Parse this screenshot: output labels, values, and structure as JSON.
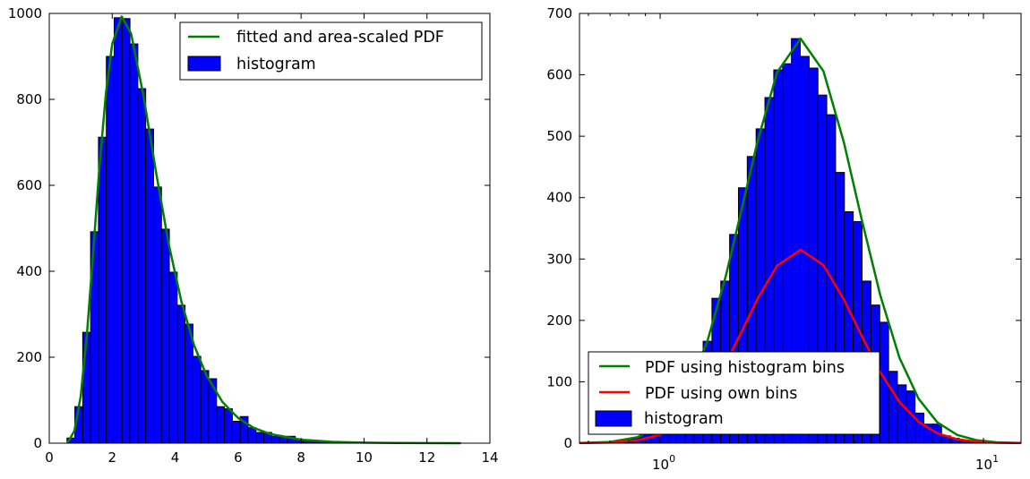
{
  "chart_data": [
    {
      "type": "bar",
      "title": "",
      "xlabel": "",
      "ylabel": "",
      "xscale": "linear",
      "xlim": [
        0,
        14
      ],
      "ylim": [
        0,
        1000
      ],
      "grid": false,
      "xticks": [
        0,
        2,
        4,
        6,
        8,
        10,
        12,
        14
      ],
      "xticklabels": [
        "0",
        "2",
        "4",
        "6",
        "8",
        "10",
        "12",
        "14"
      ],
      "yticks": [
        0,
        200,
        400,
        600,
        800,
        1000
      ],
      "yticklabels": [
        "0",
        "200",
        "400",
        "600",
        "800",
        "1000"
      ],
      "legend_position": "upper right",
      "colors": {
        "histogram": "#0000ff",
        "fit": "#008000",
        "edge": "#000000"
      },
      "histogram": {
        "name": "histogram",
        "bin_range": [
          0.563,
          13.07
        ],
        "bin_count": 50,
        "bin_spacing": "linear",
        "counts": [
          12,
          85,
          258,
          492,
          712,
          900,
          990,
          988,
          929,
          825,
          731,
          596,
          498,
          398,
          321,
          277,
          202,
          169,
          150,
          85,
          80,
          51,
          62,
          36,
          25,
          25,
          16,
          16,
          16,
          8,
          6,
          5,
          4,
          3,
          2,
          2,
          1,
          1,
          1,
          0,
          1,
          0,
          0,
          0,
          0,
          0,
          0,
          0,
          0,
          1
        ]
      },
      "series": [
        {
          "name": "fitted and area-scaled PDF",
          "color": "#008000",
          "x": [
            0.563,
            0.6,
            0.8,
            1.0,
            1.2,
            1.4,
            1.6,
            1.8,
            2.0,
            2.3,
            2.6,
            3.0,
            3.4,
            3.8,
            4.2,
            4.6,
            5.0,
            5.5,
            6.0,
            6.5,
            7.0,
            8.0,
            9.0,
            10.0,
            11.0,
            12.0,
            13.07
          ],
          "y": [
            1.9,
            3.3,
            29,
            109,
            257,
            449,
            648,
            815,
            929,
            993,
            953,
            806,
            627,
            462,
            329,
            228,
            157,
            96,
            58.5,
            35.6,
            21.7,
            8.2,
            3.1,
            1.2,
            0.5,
            0.2,
            0.1
          ]
        }
      ]
    },
    {
      "type": "bar",
      "title": "",
      "xlabel": "",
      "ylabel": "",
      "xscale": "log",
      "xlim": [
        0.563,
        13.07
      ],
      "ylim": [
        0,
        700
      ],
      "grid": false,
      "xticks": [
        1,
        10
      ],
      "xticklabels": [
        {
          "base": "10",
          "exp": "0"
        },
        {
          "base": "10",
          "exp": "1"
        }
      ],
      "yticks": [
        0,
        100,
        200,
        300,
        400,
        500,
        600,
        700
      ],
      "yticklabels": [
        "0",
        "100",
        "200",
        "300",
        "400",
        "500",
        "600",
        "700"
      ],
      "legend_position": "lower left",
      "colors": {
        "histogram": "#0000ff",
        "edge": "#000000"
      },
      "histogram": {
        "name": "histogram",
        "bin_range": [
          0.563,
          13.07
        ],
        "bin_count": 50,
        "bin_spacing": "log",
        "counts": [
          0,
          1,
          1,
          2,
          4,
          6,
          9,
          16,
          22,
          33,
          50,
          68,
          96,
          130,
          166,
          236,
          264,
          340,
          416,
          467,
          512,
          563,
          608,
          618,
          659,
          630,
          611,
          567,
          535,
          441,
          377,
          361,
          264,
          225,
          197,
          117,
          95,
          85,
          49,
          31,
          31,
          12,
          8,
          4,
          2,
          1,
          1,
          0,
          0,
          1
        ]
      },
      "series": [
        {
          "name": "PDF using histogram bins",
          "color": "#008000",
          "x": [
            0.563,
            0.7,
            0.85,
            1.0,
            1.2,
            1.4,
            1.6,
            1.8,
            2.0,
            2.3,
            2.72,
            3.2,
            3.7,
            4.2,
            4.8,
            5.5,
            6.3,
            7.2,
            8.3,
            9.5,
            11.0,
            13.07
          ],
          "y": [
            0.3,
            2.1,
            9.7,
            28.9,
            81.5,
            166,
            274,
            388,
            491,
            604,
            659,
            606,
            490,
            365,
            240,
            139,
            72.5,
            34,
            13.4,
            5.0,
            1.5,
            0.3
          ]
        },
        {
          "name": "PDF using own bins",
          "color": "#ff0000",
          "x": [
            0.563,
            0.7,
            0.85,
            1.0,
            1.2,
            1.4,
            1.6,
            1.8,
            2.0,
            2.3,
            2.72,
            3.2,
            3.7,
            4.2,
            4.8,
            5.5,
            6.3,
            7.2,
            8.3,
            9.5,
            11.0,
            13.07
          ],
          "y": [
            0.1,
            1.0,
            4.6,
            13.8,
            38.9,
            79.4,
            131,
            185,
            235,
            289,
            315,
            290,
            234,
            175,
            115,
            67,
            34.7,
            16.2,
            6.4,
            2.4,
            0.7,
            0.1
          ]
        }
      ]
    }
  ]
}
